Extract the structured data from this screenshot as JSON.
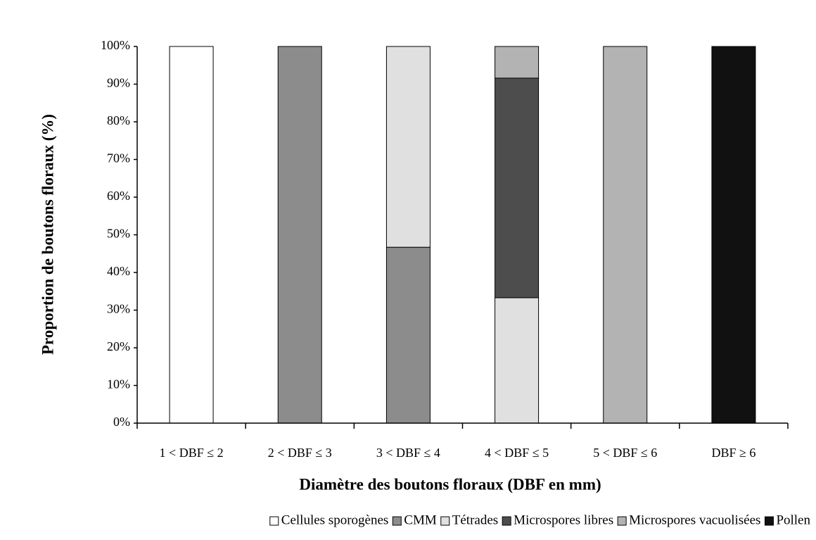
{
  "chart_data": {
    "type": "stacked_bar",
    "x_label": "Diamètre des boutons floraux (DBF en mm)",
    "y_label": "Proportion de boutons floraux (%)",
    "categories": [
      "1 < DBF ≤ 2",
      "2 < DBF ≤ 3",
      "3 < DBF ≤ 4",
      "4 < DBF ≤ 5",
      "5 < DBF ≤ 6",
      "DBF ≥ 6"
    ],
    "series": [
      {
        "name": "Cellules sporogènes",
        "color": "#ffffff",
        "values": [
          100,
          0,
          0,
          0,
          0,
          0
        ]
      },
      {
        "name": "CMM",
        "color": "#8c8c8c",
        "values": [
          0,
          100,
          46.7,
          0,
          0,
          0
        ]
      },
      {
        "name": "Tétrades",
        "color": "#e0e0e0",
        "values": [
          0,
          0,
          53.3,
          33.3,
          0,
          0
        ]
      },
      {
        "name": "Microspores libres",
        "color": "#4d4d4d",
        "values": [
          0,
          0,
          0,
          58.3,
          0,
          0
        ]
      },
      {
        "name": "Microspores vacuolisées",
        "color": "#b3b3b3",
        "values": [
          0,
          0,
          0,
          8.4,
          100,
          0
        ]
      },
      {
        "name": "Pollen",
        "color": "#111111",
        "values": [
          0,
          0,
          0,
          0,
          0,
          100
        ]
      }
    ],
    "ylim": [
      0,
      100
    ],
    "yticks": [
      {
        "value": 0,
        "label": "0%"
      },
      {
        "value": 10,
        "label": "10%"
      },
      {
        "value": 20,
        "label": "20%"
      },
      {
        "value": 30,
        "label": "30%"
      },
      {
        "value": 40,
        "label": "40%"
      },
      {
        "value": 50,
        "label": "50%"
      },
      {
        "value": 60,
        "label": "60%"
      },
      {
        "value": 70,
        "label": "70%"
      },
      {
        "value": 80,
        "label": "80%"
      },
      {
        "value": 90,
        "label": "90%"
      },
      {
        "value": 100,
        "label": "100%"
      }
    ],
    "legend": "bottom"
  }
}
